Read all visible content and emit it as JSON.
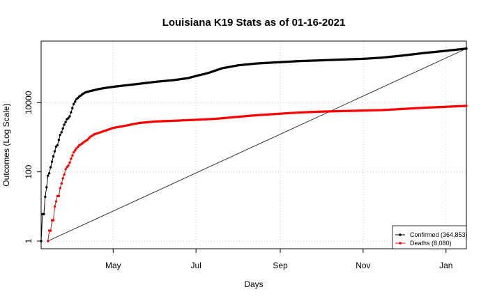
{
  "chart_data": {
    "type": "line",
    "title": "Louisiana K19 Stats as of 01-16-2021",
    "xlabel": "Days",
    "ylabel": "Outcomes (Log Scale)",
    "y_scale": "log",
    "x_ticks": [
      {
        "label": "May",
        "date": "2020-05-01"
      },
      {
        "label": "Jul",
        "date": "2020-07-01"
      },
      {
        "label": "Sep",
        "date": "2020-09-01"
      },
      {
        "label": "Nov",
        "date": "2020-11-01"
      },
      {
        "label": "Jan",
        "date": "2021-01-01"
      }
    ],
    "y_ticks": [
      {
        "label": "1",
        "value": 1
      },
      {
        "label": "100",
        "value": 100
      },
      {
        "label": "10000",
        "value": 10000
      }
    ],
    "xlim": [
      "2020-03-09",
      "2021-01-16"
    ],
    "ylim": [
      0.6,
      600000
    ],
    "grid": true,
    "legend_position": "bottom-right",
    "series": [
      {
        "name": "Confirmed (364,853)",
        "color": "#000000",
        "points": [
          [
            "2020-03-09",
            1
          ],
          [
            "2020-03-10",
            6
          ],
          [
            "2020-03-11",
            6
          ],
          [
            "2020-03-12",
            19
          ],
          [
            "2020-03-13",
            36
          ],
          [
            "2020-03-14",
            77
          ],
          [
            "2020-03-15",
            91
          ],
          [
            "2020-03-16",
            136
          ],
          [
            "2020-03-17",
            196
          ],
          [
            "2020-03-18",
            280
          ],
          [
            "2020-03-19",
            392
          ],
          [
            "2020-03-20",
            537
          ],
          [
            "2020-03-21",
            585
          ],
          [
            "2020-03-22",
            837
          ],
          [
            "2020-03-23",
            1172
          ],
          [
            "2020-03-24",
            1388
          ],
          [
            "2020-03-25",
            1795
          ],
          [
            "2020-03-26",
            2305
          ],
          [
            "2020-03-27",
            2746
          ],
          [
            "2020-03-28",
            3315
          ],
          [
            "2020-03-29",
            3540
          ],
          [
            "2020-03-30",
            4025
          ],
          [
            "2020-03-31",
            5237
          ],
          [
            "2020-04-02",
            9150
          ],
          [
            "2020-04-04",
            12496
          ],
          [
            "2020-04-06",
            14867
          ],
          [
            "2020-04-08",
            17030
          ],
          [
            "2020-04-10",
            19253
          ],
          [
            "2020-04-12",
            20595
          ],
          [
            "2020-04-15",
            21951
          ],
          [
            "2020-04-20",
            24523
          ],
          [
            "2020-04-25",
            26512
          ],
          [
            "2020-05-01",
            28711
          ],
          [
            "2020-05-10",
            31600
          ],
          [
            "2020-05-20",
            35038
          ],
          [
            "2020-06-01",
            39916
          ],
          [
            "2020-06-15",
            45000
          ],
          [
            "2020-06-25",
            51000
          ],
          [
            "2020-07-01",
            59000
          ],
          [
            "2020-07-10",
            72000
          ],
          [
            "2020-07-20",
            98000
          ],
          [
            "2020-08-01",
            120000
          ],
          [
            "2020-08-15",
            136000
          ],
          [
            "2020-09-01",
            148000
          ],
          [
            "2020-09-15",
            159000
          ],
          [
            "2020-10-01",
            167000
          ],
          [
            "2020-10-15",
            175000
          ],
          [
            "2020-11-01",
            185000
          ],
          [
            "2020-11-15",
            200000
          ],
          [
            "2020-12-01",
            232000
          ],
          [
            "2020-12-15",
            270000
          ],
          [
            "2021-01-01",
            315000
          ],
          [
            "2021-01-16",
            364853
          ]
        ]
      },
      {
        "name": "Deaths (8,080)",
        "color": "#ff0000",
        "points": [
          [
            "2020-03-14",
            1
          ],
          [
            "2020-03-15",
            2
          ],
          [
            "2020-03-16",
            2
          ],
          [
            "2020-03-17",
            4
          ],
          [
            "2020-03-18",
            4
          ],
          [
            "2020-03-19",
            10
          ],
          [
            "2020-03-20",
            14
          ],
          [
            "2020-03-21",
            20
          ],
          [
            "2020-03-22",
            20
          ],
          [
            "2020-03-23",
            34
          ],
          [
            "2020-03-24",
            46
          ],
          [
            "2020-03-25",
            65
          ],
          [
            "2020-03-26",
            83
          ],
          [
            "2020-03-27",
            119
          ],
          [
            "2020-03-28",
            137
          ],
          [
            "2020-03-29",
            151
          ],
          [
            "2020-03-30",
            185
          ],
          [
            "2020-03-31",
            239
          ],
          [
            "2020-04-02",
            370
          ],
          [
            "2020-04-04",
            477
          ],
          [
            "2020-04-06",
            582
          ],
          [
            "2020-04-08",
            652
          ],
          [
            "2020-04-10",
            755
          ],
          [
            "2020-04-12",
            840
          ],
          [
            "2020-04-14",
            1013
          ],
          [
            "2020-04-17",
            1213
          ],
          [
            "2020-04-22",
            1405
          ],
          [
            "2020-05-01",
            1862
          ],
          [
            "2020-05-10",
            2154
          ],
          [
            "2020-05-20",
            2581
          ],
          [
            "2020-06-01",
            2854
          ],
          [
            "2020-06-15",
            3000
          ],
          [
            "2020-07-01",
            3200
          ],
          [
            "2020-07-15",
            3400
          ],
          [
            "2020-08-01",
            3900
          ],
          [
            "2020-08-15",
            4350
          ],
          [
            "2020-09-01",
            4800
          ],
          [
            "2020-09-15",
            5200
          ],
          [
            "2020-10-01",
            5500
          ],
          [
            "2020-10-15",
            5700
          ],
          [
            "2020-11-01",
            5900
          ],
          [
            "2020-11-15",
            6100
          ],
          [
            "2020-12-01",
            6600
          ],
          [
            "2020-12-15",
            7100
          ],
          [
            "2021-01-01",
            7600
          ],
          [
            "2021-01-16",
            8080
          ]
        ]
      }
    ],
    "reference_line": {
      "from": [
        "2020-03-14",
        1
      ],
      "to": [
        "2021-01-16",
        364853
      ],
      "color": "#333333"
    }
  }
}
